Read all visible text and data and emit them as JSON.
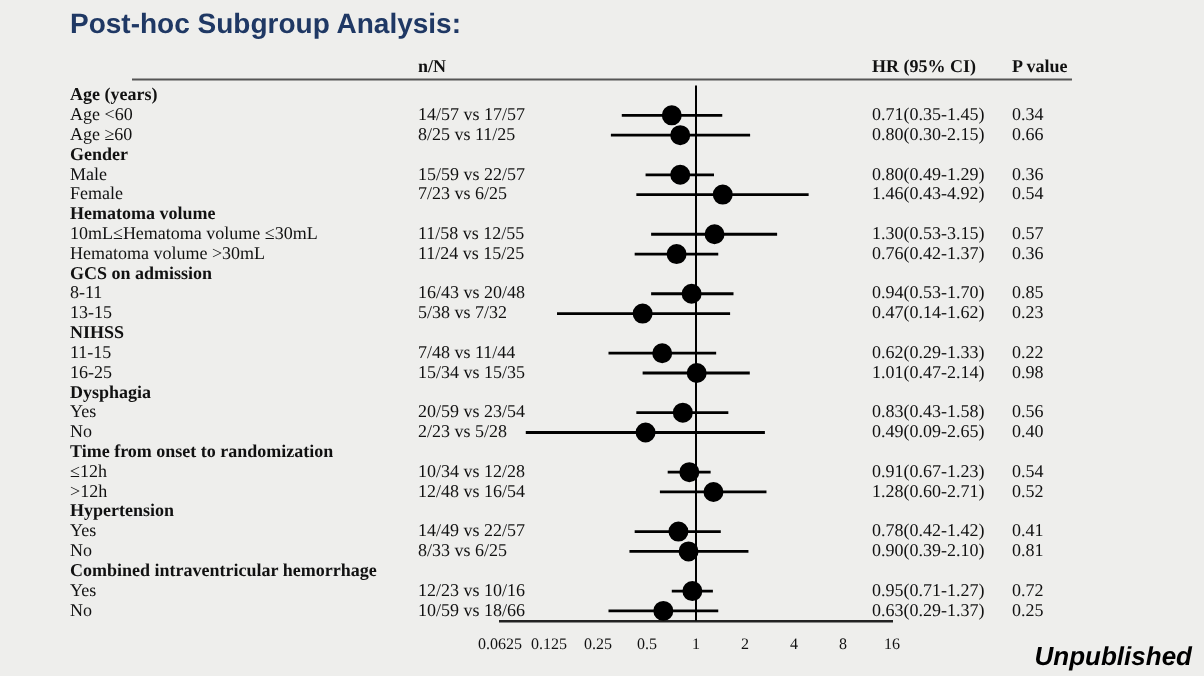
{
  "chart_data": {
    "type": "scatter",
    "orientation": "horizontal",
    "title": "Post-hoc Subgroup Analysis:",
    "categories": [
      "Age (years)",
      "Age <60",
      "Age ≥60",
      "Gender",
      "Male",
      "Female",
      "Hematoma volume",
      "10mL≤Hematoma volume ≤30mL",
      "Hematoma volume >30mL",
      "GCS on admission",
      "8-11",
      "13-15",
      "NIHSS",
      "11-15",
      "16-25",
      "Dysphagia",
      "Yes",
      "No",
      "Time from onset to randomization",
      "≤12h",
      ">12h",
      "Hypertension",
      "Yes",
      "No",
      "Combined intraventricular hemorrhage",
      "Yes",
      "No"
    ],
    "series": [
      {
        "color": "#000000",
        "values": [
          null,
          0.71,
          0.8,
          null,
          0.8,
          1.46,
          null,
          1.3,
          0.76,
          null,
          0.94,
          0.47,
          null,
          0.62,
          1.01,
          null,
          0.83,
          0.49,
          null,
          0.91,
          1.28,
          null,
          0.78,
          0.9,
          null,
          0.95,
          0.63
        ],
        "errors": [
          null,
          [
            0.35,
            1.45
          ],
          [
            0.3,
            2.15
          ],
          null,
          [
            0.49,
            1.29
          ],
          [
            0.43,
            4.92
          ],
          null,
          [
            0.53,
            3.15
          ],
          [
            0.42,
            1.37
          ],
          null,
          [
            0.53,
            1.7
          ],
          [
            0.14,
            1.62
          ],
          null,
          [
            0.29,
            1.33
          ],
          [
            0.47,
            2.14
          ],
          null,
          [
            0.43,
            1.58
          ],
          [
            0.09,
            2.65
          ],
          null,
          [
            0.67,
            1.23
          ],
          [
            0.6,
            2.71
          ],
          null,
          [
            0.42,
            1.42
          ],
          [
            0.39,
            2.1
          ],
          null,
          [
            0.71,
            1.27
          ],
          [
            0.29,
            1.37
          ]
        ],
        "value_labels": [
          null,
          "0.71(0.35-1.45)",
          "0.80(0.30-2.15)",
          null,
          "0.80(0.49-1.29)",
          "1.46(0.43-4.92)",
          null,
          "1.30(0.53-3.15)",
          "0.76(0.42-1.37)",
          null,
          "0.94(0.53-1.70)",
          "0.47(0.14-1.62)",
          null,
          "0.62(0.29-1.33)",
          "1.01(0.47-2.14)",
          null,
          "0.83(0.43-1.58)",
          "0.49(0.09-2.65)",
          null,
          "0.91(0.67-1.23)",
          "1.28(0.60-2.71)",
          null,
          "0.78(0.42-1.42)",
          "0.90(0.39-2.10)",
          null,
          "0.95(0.71-1.27)",
          "0.63(0.29-1.37)"
        ]
      }
    ],
    "log": "x",
    "xlim": [
      0.0625,
      16
    ],
    "xticks": [
      0.0625,
      0.125,
      0.25,
      0.5,
      1,
      2,
      4,
      8,
      16
    ],
    "ref_lines": [
      {
        "axis": "x",
        "value": 1,
        "color": "#000000"
      }
    ],
    "marker": "circle",
    "grid": false,
    "legend": false,
    "annotations": [
      "n/N",
      "HR (95% CI)",
      "P value",
      "14/57 vs 17/57",
      "0.34",
      "8/25 vs 11/25",
      "0.66",
      "15/59 vs 22/57",
      "0.36",
      "7/23 vs 6/25",
      "0.54",
      "11/58 vs 12/55",
      "0.57",
      "11/24 vs 15/25",
      "0.36",
      "16/43 vs 20/48",
      "0.85",
      "5/38 vs 7/32",
      "0.23",
      "7/48 vs 11/44",
      "0.22",
      "15/34 vs 15/35",
      "0.98",
      "20/59 vs 23/54",
      "0.56",
      "2/23 vs 5/28",
      "0.40",
      "10/34 vs 12/28",
      "0.54",
      "12/48 vs 16/54",
      "0.52",
      "14/49 vs 22/57",
      "0.41",
      "8/33 vs 6/25",
      "0.81",
      "12/23 vs 10/16",
      "0.72",
      "10/59 vs 18/66",
      "0.25",
      "Unpublished"
    ]
  }
}
